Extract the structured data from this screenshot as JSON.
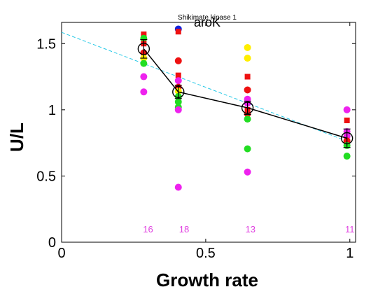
{
  "chart_data": {
    "type": "scatter",
    "title": "aroK",
    "subtitle": "Shikimate kinase 1",
    "xlabel": "Growth rate",
    "ylabel": "U/L",
    "xlim": [
      0,
      1.02
    ],
    "ylim": [
      0,
      1.66
    ],
    "xticks": [
      {
        "value": 0,
        "label": "0"
      },
      {
        "value": 0.5,
        "label": "0.5"
      },
      {
        "value": 1,
        "label": "1"
      }
    ],
    "yticks": [
      {
        "value": 0,
        "label": "0"
      },
      {
        "value": 0.5,
        "label": "0.5"
      },
      {
        "value": 1,
        "label": "1"
      },
      {
        "value": 1.5,
        "label": "1.5"
      }
    ],
    "grid": false,
    "colors": {
      "mean_line": "#000000",
      "fit_line": "#22c8e6",
      "count_labels": "#e040e0",
      "errorbar": "#000000"
    },
    "fit_line": {
      "x": [
        0,
        1
      ],
      "y": [
        1.585,
        0.755
      ]
    },
    "mean_series": {
      "points": [
        {
          "x": 0.285,
          "y": 1.46,
          "err": 0.07
        },
        {
          "x": 0.405,
          "y": 1.135,
          "err": 0.05
        },
        {
          "x": 0.645,
          "y": 1.015,
          "err": 0.05
        },
        {
          "x": 0.99,
          "y": 0.785,
          "err": 0.07
        }
      ]
    },
    "replicate_points": [
      {
        "x": 0.285,
        "y": 1.57,
        "color": "#ee1111",
        "shape": "square"
      },
      {
        "x": 0.285,
        "y": 1.54,
        "color": "#22dd22",
        "shape": "circle"
      },
      {
        "x": 0.285,
        "y": 1.5,
        "color": "#ee1111",
        "shape": "square"
      },
      {
        "x": 0.285,
        "y": 1.43,
        "color": "#ee1111",
        "shape": "circle"
      },
      {
        "x": 0.285,
        "y": 1.39,
        "color": "#ffee00",
        "shape": "circle"
      },
      {
        "x": 0.285,
        "y": 1.35,
        "color": "#22dd22",
        "shape": "circle"
      },
      {
        "x": 0.285,
        "y": 1.25,
        "color": "#ee22ee",
        "shape": "circle"
      },
      {
        "x": 0.285,
        "y": 1.135,
        "color": "#ee22ee",
        "shape": "circle"
      },
      {
        "x": 0.405,
        "y": 1.61,
        "color": "#1122dd",
        "shape": "circle"
      },
      {
        "x": 0.405,
        "y": 1.59,
        "color": "#ee1111",
        "shape": "square"
      },
      {
        "x": 0.405,
        "y": 1.37,
        "color": "#ee1111",
        "shape": "circle"
      },
      {
        "x": 0.405,
        "y": 1.26,
        "color": "#ee1111",
        "shape": "square"
      },
      {
        "x": 0.405,
        "y": 1.22,
        "color": "#ee22ee",
        "shape": "circle"
      },
      {
        "x": 0.405,
        "y": 1.17,
        "color": "#ee1111",
        "shape": "circle"
      },
      {
        "x": 0.405,
        "y": 1.14,
        "color": "#ffee00",
        "shape": "circle"
      },
      {
        "x": 0.405,
        "y": 1.1,
        "color": "#22dd22",
        "shape": "circle"
      },
      {
        "x": 0.405,
        "y": 1.06,
        "color": "#22dd22",
        "shape": "circle"
      },
      {
        "x": 0.405,
        "y": 1.02,
        "color": "#22dd22",
        "shape": "circle"
      },
      {
        "x": 0.405,
        "y": 1.0,
        "color": "#ee22ee",
        "shape": "circle"
      },
      {
        "x": 0.405,
        "y": 0.415,
        "color": "#ee22ee",
        "shape": "circle"
      },
      {
        "x": 0.645,
        "y": 1.47,
        "color": "#ffee00",
        "shape": "circle"
      },
      {
        "x": 0.645,
        "y": 1.39,
        "color": "#ffee00",
        "shape": "circle"
      },
      {
        "x": 0.645,
        "y": 1.25,
        "color": "#ee1111",
        "shape": "square"
      },
      {
        "x": 0.645,
        "y": 1.15,
        "color": "#ee1111",
        "shape": "circle"
      },
      {
        "x": 0.645,
        "y": 1.08,
        "color": "#ee22ee",
        "shape": "circle"
      },
      {
        "x": 0.645,
        "y": 1.05,
        "color": "#ee22ee",
        "shape": "circle"
      },
      {
        "x": 0.645,
        "y": 1.0,
        "color": "#ee1111",
        "shape": "square"
      },
      {
        "x": 0.645,
        "y": 0.97,
        "color": "#ee1111",
        "shape": "circle"
      },
      {
        "x": 0.645,
        "y": 0.93,
        "color": "#22dd22",
        "shape": "circle"
      },
      {
        "x": 0.645,
        "y": 0.705,
        "color": "#22dd22",
        "shape": "circle"
      },
      {
        "x": 0.645,
        "y": 0.53,
        "color": "#ee22ee",
        "shape": "circle"
      },
      {
        "x": 0.99,
        "y": 1.0,
        "color": "#ee22ee",
        "shape": "circle"
      },
      {
        "x": 0.99,
        "y": 0.92,
        "color": "#ee1111",
        "shape": "square"
      },
      {
        "x": 0.99,
        "y": 0.835,
        "color": "#ee22ee",
        "shape": "circle"
      },
      {
        "x": 0.99,
        "y": 0.8,
        "color": "#ee22ee",
        "shape": "circle"
      },
      {
        "x": 0.99,
        "y": 0.765,
        "color": "#ee1111",
        "shape": "circle"
      },
      {
        "x": 0.99,
        "y": 0.73,
        "color": "#22dd22",
        "shape": "circle"
      },
      {
        "x": 0.99,
        "y": 0.65,
        "color": "#22dd22",
        "shape": "circle"
      }
    ],
    "count_labels": [
      {
        "x": 0.3,
        "y": 0.1,
        "text": "16"
      },
      {
        "x": 0.425,
        "y": 0.1,
        "text": "18"
      },
      {
        "x": 0.655,
        "y": 0.1,
        "text": "13"
      },
      {
        "x": 1.0,
        "y": 0.1,
        "text": "11"
      }
    ]
  }
}
